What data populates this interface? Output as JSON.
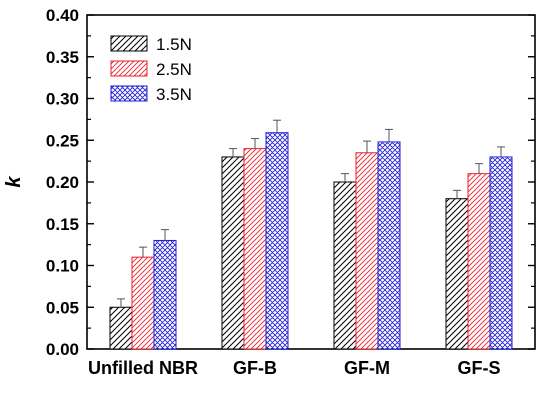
{
  "chart_data": {
    "type": "bar",
    "categories": [
      "Unfilled NBR",
      "GF-B",
      "GF-M",
      "GF-S"
    ],
    "series": [
      {
        "name": "1.5N",
        "values": [
          0.05,
          0.23,
          0.2,
          0.18
        ],
        "errors": [
          0.01,
          0.01,
          0.01,
          0.01
        ],
        "color": "#000000",
        "pattern": "diagonal-hatch"
      },
      {
        "name": "2.5N",
        "values": [
          0.11,
          0.24,
          0.235,
          0.21
        ],
        "errors": [
          0.012,
          0.012,
          0.014,
          0.012
        ],
        "color": "#e8202a",
        "pattern": "diagonal-hatch"
      },
      {
        "name": "3.5N",
        "values": [
          0.13,
          0.259,
          0.248,
          0.23
        ],
        "errors": [
          0.013,
          0.015,
          0.015,
          0.012
        ],
        "color": "#1c1cd8",
        "pattern": "cross-hatch"
      }
    ],
    "ylabel": "k",
    "xlabel": "",
    "ylim": [
      0,
      0.4
    ],
    "yticks": [
      "0.00",
      "0.05",
      "0.10",
      "0.15",
      "0.20",
      "0.25",
      "0.30",
      "0.35",
      "0.40"
    ],
    "legend_position": "top-left",
    "grid": false
  }
}
